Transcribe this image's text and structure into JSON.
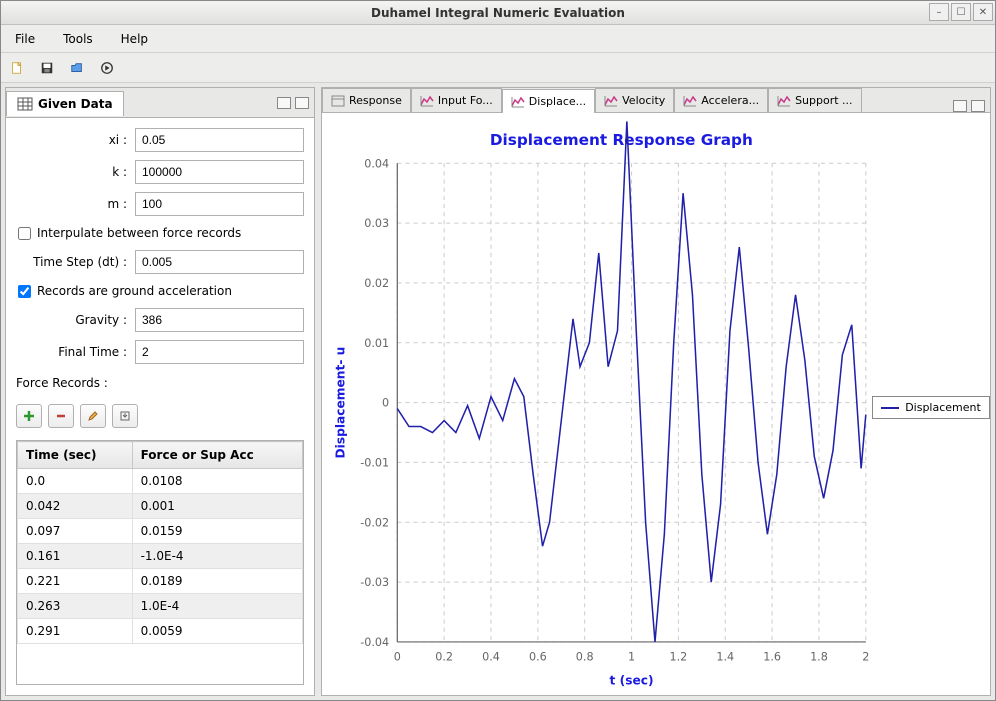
{
  "window": {
    "title": "Duhamel Integral Numeric Evaluation"
  },
  "menubar": {
    "items": [
      "File",
      "Tools",
      "Help"
    ]
  },
  "left_panel": {
    "tab_label": "Given Data",
    "fields": {
      "xi": {
        "label": "xi :",
        "value": "0.05"
      },
      "k": {
        "label": "k :",
        "value": "100000"
      },
      "m": {
        "label": "m :",
        "value": "100"
      },
      "interpolate": {
        "label": "Interpulate between force records",
        "checked": false
      },
      "dt": {
        "label": "Time Step (dt) :",
        "value": "0.005"
      },
      "ground_accel": {
        "label": "Records are ground acceleration",
        "checked": true
      },
      "gravity": {
        "label": "Gravity :",
        "value": "386"
      },
      "final_time": {
        "label": "Final Time :",
        "value": "2"
      }
    },
    "records_label": "Force Records :",
    "table": {
      "columns": [
        "Time (sec)",
        "Force or Sup Acc"
      ],
      "rows": [
        [
          "0.0",
          "0.0108"
        ],
        [
          "0.042",
          "0.001"
        ],
        [
          "0.097",
          "0.0159"
        ],
        [
          "0.161",
          "-1.0E-4"
        ],
        [
          "0.221",
          "0.0189"
        ],
        [
          "0.263",
          "1.0E-4"
        ],
        [
          "0.291",
          "0.0059"
        ]
      ]
    }
  },
  "right_panel": {
    "tabs": [
      "Response",
      "Input Fo...",
      "Displace...",
      "Velocity",
      "Accelera...",
      "Support ..."
    ],
    "active_tab": 2
  },
  "chart": {
    "type": "line",
    "title": "Displacement Response Graph",
    "title_fontsize": 15,
    "title_color": "#1a1ae0",
    "xlabel": "t (sec)",
    "ylabel": "Displacement- u",
    "label_color": "#1a1ae0",
    "label_fontsize": 12,
    "background_color": "#ffffff",
    "grid_color": "#cccccc",
    "grid_dash": "4,4",
    "axis_color": "#666666",
    "tick_color": "#666666",
    "tick_fontsize": 11,
    "line_color": "#2020aa",
    "line_width": 1.5,
    "xlim": [
      0,
      2
    ],
    "ylim": [
      -0.04,
      0.04
    ],
    "xtick_step": 0.2,
    "xticks": [
      0,
      0.2,
      0.4,
      0.6,
      0.8,
      1,
      1.2,
      1.4,
      1.6,
      1.8,
      2
    ],
    "yticks": [
      -0.04,
      -0.03,
      -0.02,
      -0.01,
      0,
      0.01,
      0.02,
      0.03,
      0.04
    ],
    "legend_label": "Displacement",
    "series": {
      "x": [
        0,
        0.05,
        0.1,
        0.15,
        0.2,
        0.25,
        0.3,
        0.35,
        0.4,
        0.45,
        0.5,
        0.54,
        0.58,
        0.62,
        0.65,
        0.7,
        0.75,
        0.78,
        0.82,
        0.86,
        0.9,
        0.94,
        0.98,
        1.02,
        1.06,
        1.1,
        1.14,
        1.18,
        1.22,
        1.26,
        1.3,
        1.34,
        1.38,
        1.42,
        1.46,
        1.5,
        1.54,
        1.58,
        1.62,
        1.66,
        1.7,
        1.74,
        1.78,
        1.82,
        1.86,
        1.9,
        1.94,
        1.98,
        2.0
      ],
      "y": [
        -0.001,
        -0.004,
        -0.004,
        -0.005,
        -0.003,
        -0.005,
        -0.0005,
        -0.006,
        0.001,
        -0.003,
        0.004,
        0.001,
        -0.012,
        -0.024,
        -0.02,
        -0.003,
        0.014,
        0.006,
        0.01,
        0.025,
        0.006,
        0.012,
        0.047,
        0.012,
        -0.02,
        -0.04,
        -0.022,
        0.01,
        0.035,
        0.018,
        -0.012,
        -0.03,
        -0.017,
        0.012,
        0.026,
        0.009,
        -0.01,
        -0.022,
        -0.012,
        0.006,
        0.018,
        0.007,
        -0.009,
        -0.016,
        -0.008,
        0.008,
        0.013,
        -0.011,
        -0.002
      ]
    }
  }
}
